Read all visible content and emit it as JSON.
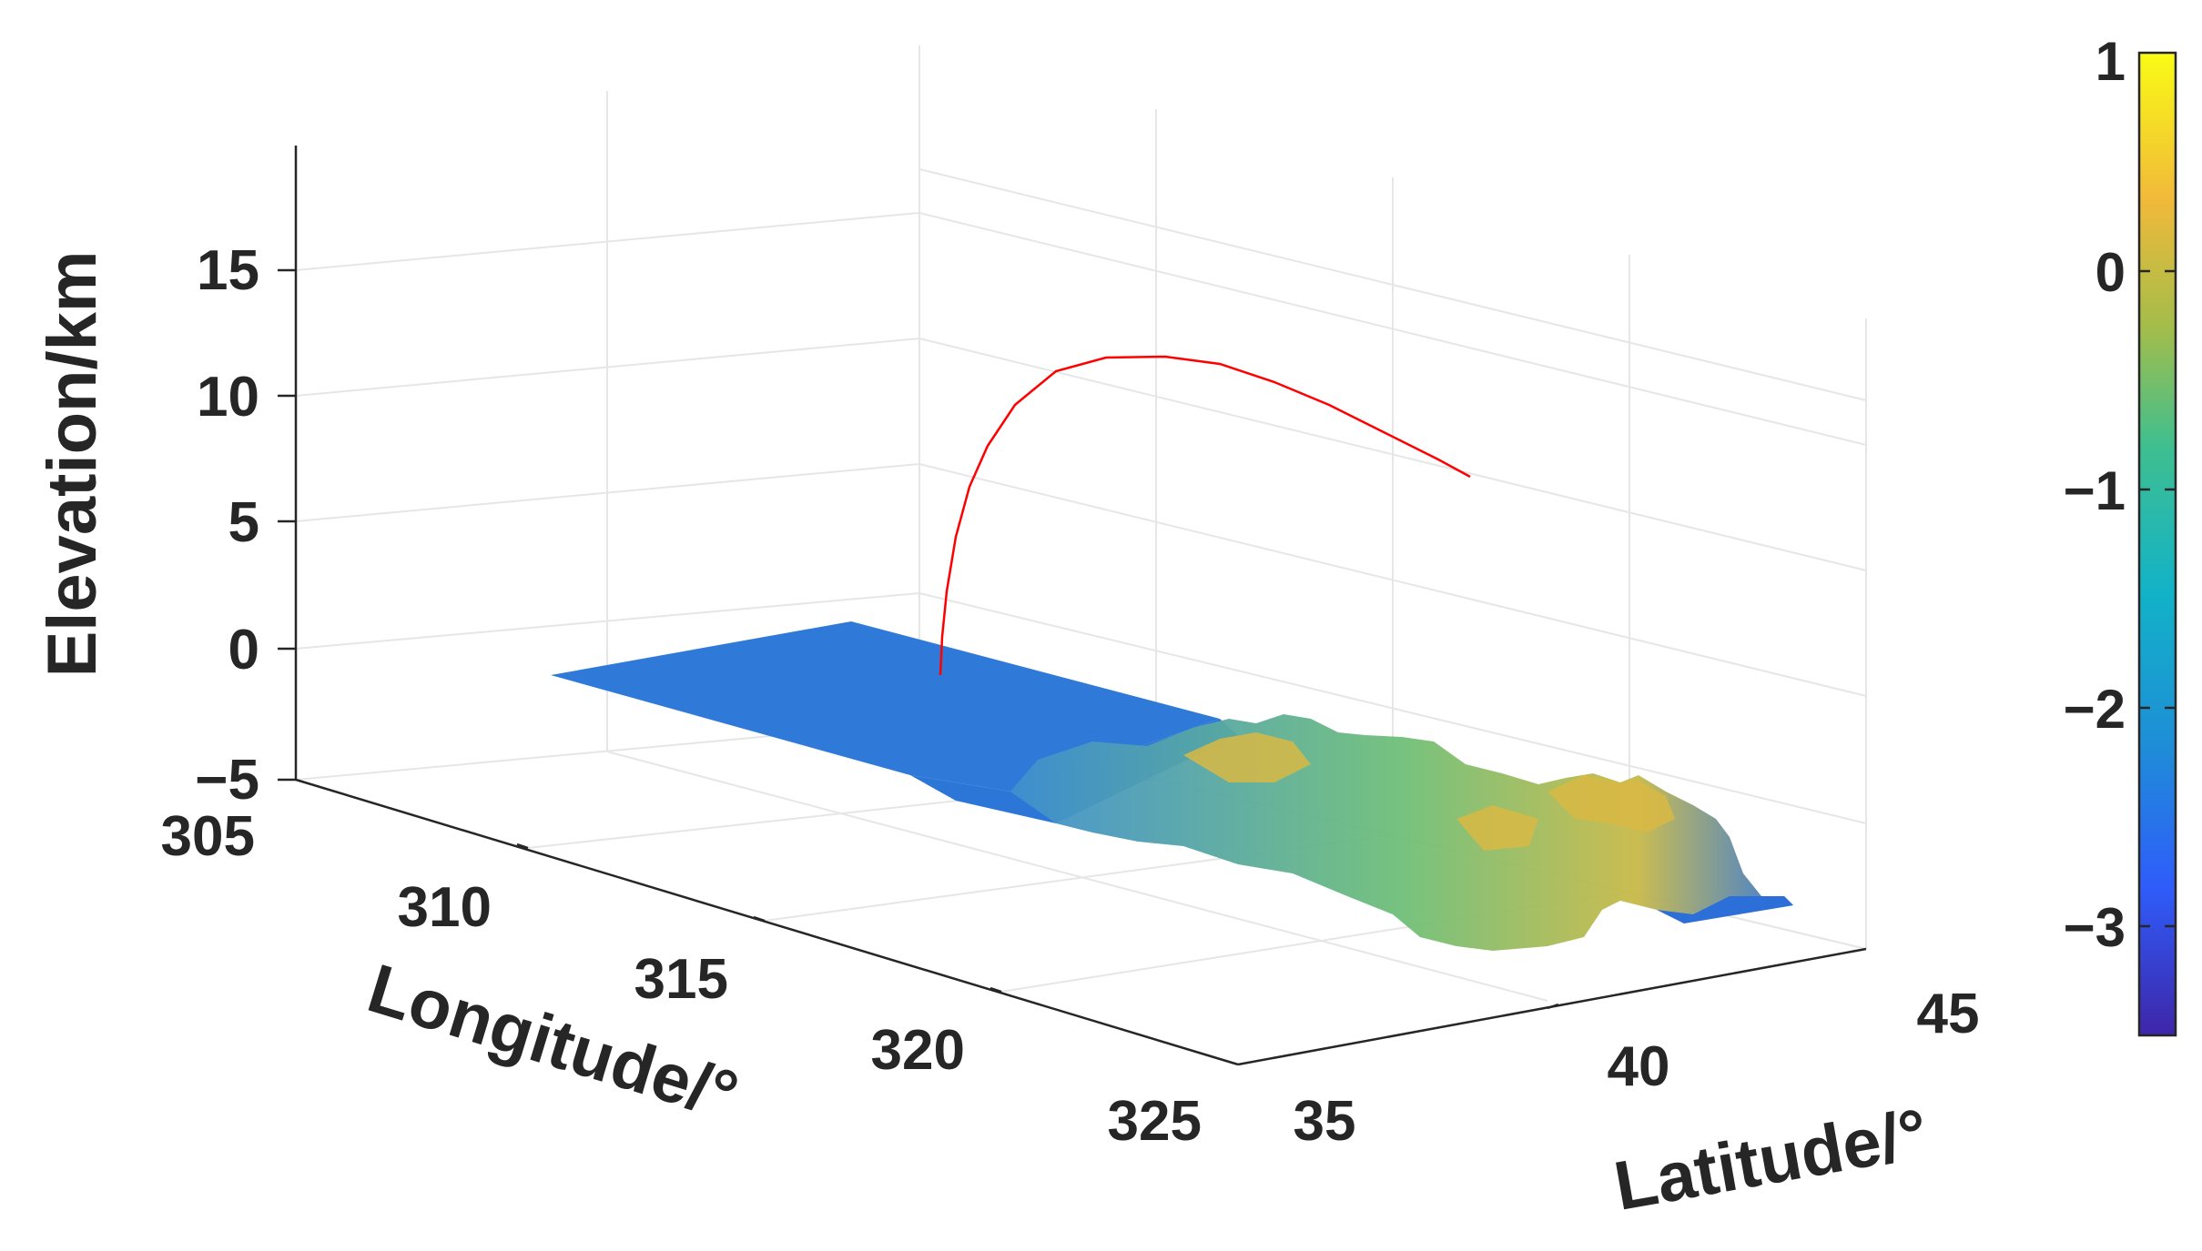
{
  "chart_data": {
    "type": "surface3d",
    "title": "",
    "xlabel": "Longitude/°",
    "ylabel": "Latitude/°",
    "zlabel": "Elevation/km",
    "x_ticks": [
      "305",
      "310",
      "315",
      "320",
      "325"
    ],
    "y_ticks": [
      "35",
      "40",
      "45"
    ],
    "z_ticks": [
      "−5",
      "0",
      "5",
      "10",
      "15"
    ],
    "xlim": [
      305,
      325
    ],
    "ylim": [
      35,
      45
    ],
    "zlim": [
      -5,
      19
    ],
    "grid": true,
    "colormap": "parula",
    "colorbar": {
      "ticks": [
        "1",
        "0",
        "−1",
        "−2",
        "−3"
      ],
      "tick_values": [
        1,
        0,
        -1,
        -2,
        -3
      ],
      "range": [
        -3.5,
        1
      ]
    },
    "surface": {
      "description_values": "terrain strip, elevations roughly -3 to 0.3 km",
      "lon_range": [
        309,
        322
      ],
      "lat_range": [
        35,
        42
      ],
      "elevation_range": [
        -3,
        0.3
      ]
    },
    "series": [
      {
        "type": "line3d",
        "color": "#ff0000",
        "points": [
          {
            "lon": 314.0,
            "lat": 37.8,
            "elev": -1.0
          },
          {
            "lon": 314.0,
            "lat": 37.8,
            "elev": 3.0
          },
          {
            "lon": 314.0,
            "lat": 37.9,
            "elev": 7.0
          },
          {
            "lon": 313.8,
            "lat": 38.2,
            "elev": 9.5
          },
          {
            "lon": 313.5,
            "lat": 38.6,
            "elev": 10.8
          },
          {
            "lon": 313.0,
            "lat": 39.2,
            "elev": 11.3
          },
          {
            "lon": 312.5,
            "lat": 39.9,
            "elev": 11.2
          },
          {
            "lon": 312.0,
            "lat": 40.6,
            "elev": 10.6
          },
          {
            "lon": 311.5,
            "lat": 41.2,
            "elev": 9.8
          },
          {
            "lon": 311.0,
            "lat": 41.8,
            "elev": 8.8
          },
          {
            "lon": 310.5,
            "lat": 42.3,
            "elev": 7.8
          },
          {
            "lon": 310.0,
            "lat": 42.8,
            "elev": 6.8
          }
        ]
      }
    ],
    "colors": {
      "line": "#ff0000",
      "axis": "#262626",
      "grid": "#e6e6e6"
    }
  }
}
